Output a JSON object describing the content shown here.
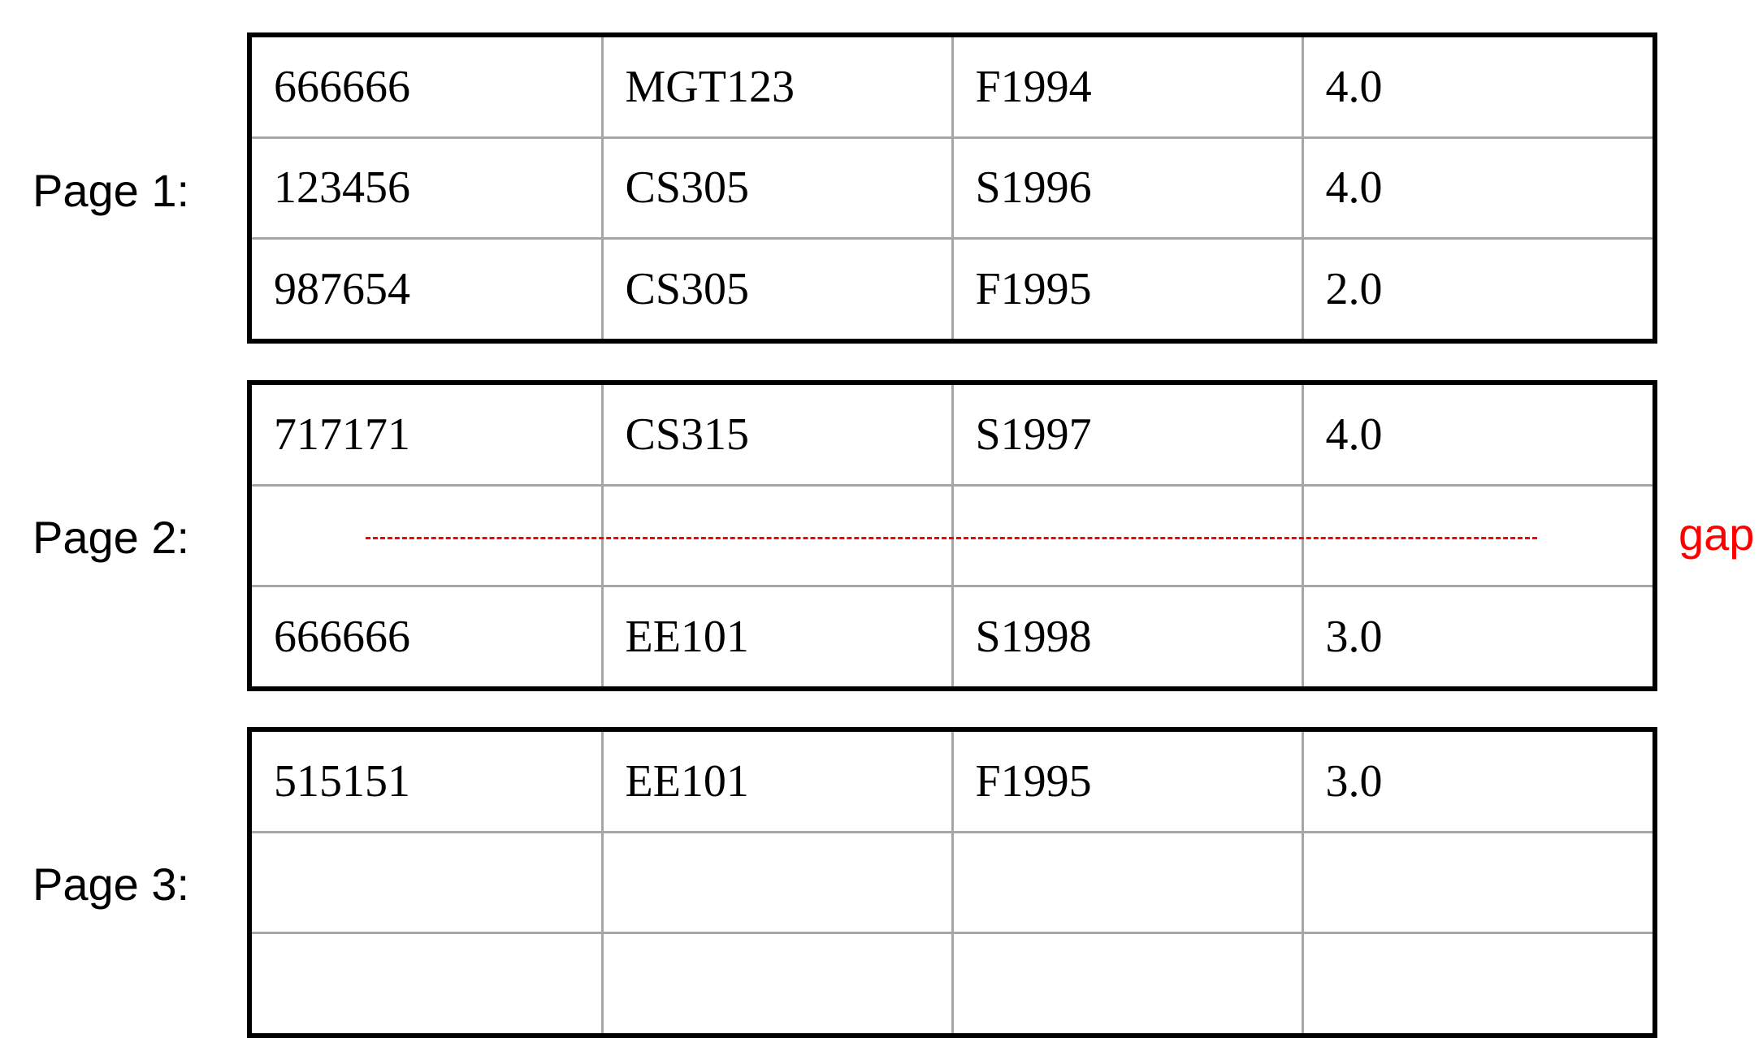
{
  "pages": [
    {
      "label": "Page 1:",
      "rows": [
        [
          "666666",
          "MGT123",
          "F1994",
          "4.0"
        ],
        [
          "123456",
          "CS305",
          "S1996",
          "4.0"
        ],
        [
          "987654",
          "CS305",
          "F1995",
          "2.0"
        ]
      ]
    },
    {
      "label": "Page 2:",
      "rows": [
        [
          "717171",
          "CS315",
          "S1997",
          "4.0"
        ],
        [
          "",
          "",
          "",
          ""
        ],
        [
          "666666",
          "EE101",
          "S1998",
          "3.0"
        ]
      ]
    },
    {
      "label": "Page 3:",
      "rows": [
        [
          "515151",
          "EE101",
          "F1995",
          "3.0"
        ],
        [
          "",
          "",
          "",
          ""
        ],
        [
          "",
          "",
          "",
          ""
        ]
      ]
    }
  ],
  "gap": {
    "label": "gap",
    "color": "#ff0000"
  }
}
